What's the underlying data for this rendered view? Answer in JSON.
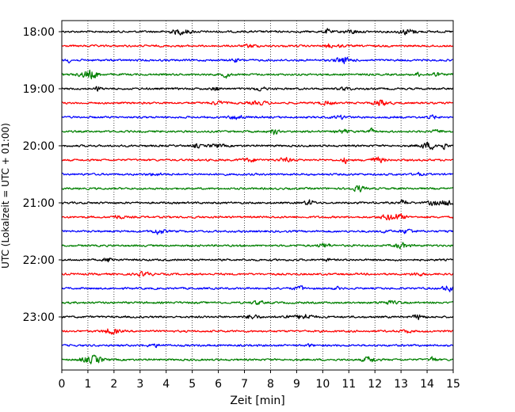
{
  "chart_data": {
    "type": "line",
    "title": "",
    "xlabel": "Zeit  [min]",
    "ylabel": "UTC (Lokalzeit = UTC + 01:00)",
    "xlim": [
      0,
      15
    ],
    "x_ticks": [
      "0",
      "1",
      "2",
      "3",
      "4",
      "5",
      "6",
      "7",
      "8",
      "9",
      "10",
      "11",
      "12",
      "13",
      "14",
      "15"
    ],
    "y_tick_labels": [
      "18:00",
      "19:00",
      "20:00",
      "21:00",
      "22:00",
      "23:00"
    ],
    "row_interval_min": 15,
    "start_time": "18:00",
    "row_count": 24,
    "colors": [
      "#000000",
      "#ff0000",
      "#0000ff",
      "#008000"
    ],
    "grid": "vertical dotted at each minute"
  }
}
